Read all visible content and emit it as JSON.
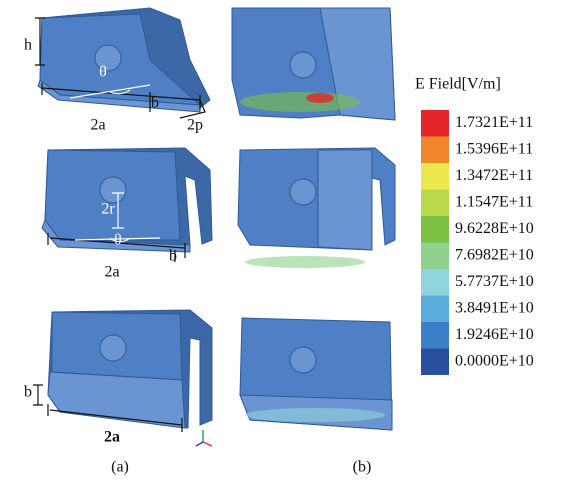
{
  "panels": {
    "a": {
      "label": "(a)",
      "annotations": [
        "h",
        "θ",
        "b",
        "2a",
        "2p",
        "2r",
        "θ",
        "b",
        "2a",
        "b",
        "2a"
      ]
    },
    "b": {
      "label": "(b)"
    }
  },
  "legend": {
    "title": "E Field[V/m]",
    "entries": [
      {
        "label": "1.7321E+11",
        "color": "#e3262a"
      },
      {
        "label": "1.5396E+11",
        "color": "#f0862c"
      },
      {
        "label": "1.3472E+11",
        "color": "#ece74c"
      },
      {
        "label": "1.1547E+11",
        "color": "#b8d94a"
      },
      {
        "label": "9.6228E+10",
        "color": "#7cc143"
      },
      {
        "label": "7.6982E+10",
        "color": "#8ed08c"
      },
      {
        "label": "5.7737E+10",
        "color": "#8fd5db"
      },
      {
        "label": "3.8491E+10",
        "color": "#5badde"
      },
      {
        "label": "1.9246E+10",
        "color": "#3b7fc8"
      },
      {
        "label": "0.0000E+10",
        "color": "#2a4f9f"
      }
    ]
  }
}
